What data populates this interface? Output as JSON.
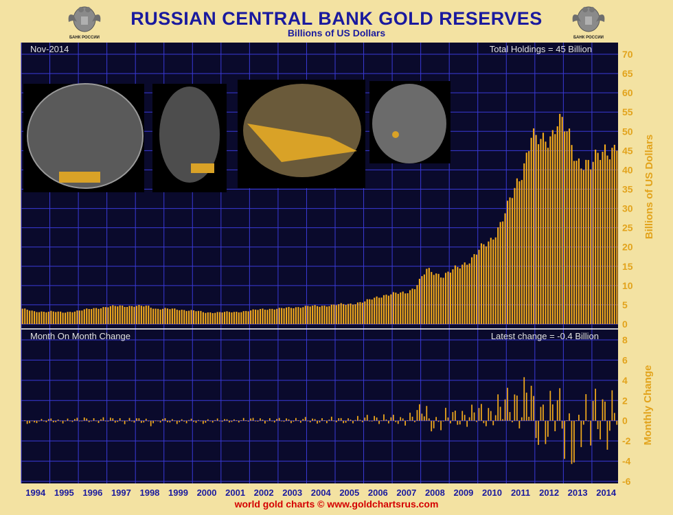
{
  "header": {
    "title": "RUSSIAN CENTRAL BANK GOLD RESERVES",
    "subtitle": "Billions of US Dollars",
    "emblem_text": "БАНК РОССИИ"
  },
  "footer": {
    "credit": "world gold charts © www.goldchartsrus.com"
  },
  "colors": {
    "background": "#f3e2a2",
    "plot_bg": "#0a0a2c",
    "grid": "#3a3ad8",
    "bar": "#f2aa1c",
    "title": "#1a1a9e",
    "accent_text": "#e2a31c",
    "footer": "#d40000"
  },
  "chart_data": [
    {
      "type": "bar",
      "title": "RUSSIAN CENTRAL BANK GOLD RESERVES",
      "subtitle": "Billions of US Dollars",
      "ylabel": "Billions of US Dollars",
      "date_label": "Nov-2014",
      "annotation": "Total Holdings = 45 Billion",
      "ylim": [
        0,
        70
      ],
      "yticks": [
        0,
        5,
        10,
        15,
        20,
        25,
        30,
        35,
        40,
        45,
        50,
        55,
        60,
        65,
        70
      ],
      "grid": true,
      "x_start": "1994-01",
      "x_end": "2014-11",
      "anchors": [
        [
          "1994-01",
          4.0
        ],
        [
          "1994-06",
          3.2
        ],
        [
          "1995-01",
          3.3
        ],
        [
          "1995-06",
          3.0
        ],
        [
          "1996-01",
          3.5
        ],
        [
          "1996-06",
          4.0
        ],
        [
          "1997-01",
          4.5
        ],
        [
          "1997-06",
          4.7
        ],
        [
          "1998-01",
          4.7
        ],
        [
          "1998-06",
          4.6
        ],
        [
          "1998-09",
          4.0
        ],
        [
          "1999-01",
          4.0
        ],
        [
          "1999-06",
          3.8
        ],
        [
          "2000-01",
          3.5
        ],
        [
          "2000-06",
          3.0
        ],
        [
          "2001-01",
          3.1
        ],
        [
          "2001-06",
          3.1
        ],
        [
          "2002-01",
          3.5
        ],
        [
          "2002-06",
          3.9
        ],
        [
          "2003-01",
          4.0
        ],
        [
          "2003-06",
          4.3
        ],
        [
          "2004-01",
          4.6
        ],
        [
          "2004-06",
          4.7
        ],
        [
          "2005-01",
          5.0
        ],
        [
          "2005-06",
          5.2
        ],
        [
          "2006-01",
          5.8
        ],
        [
          "2006-06",
          7.0
        ],
        [
          "2006-09",
          7.5
        ],
        [
          "2007-01",
          7.8
        ],
        [
          "2007-06",
          8.2
        ],
        [
          "2007-10",
          9.5
        ],
        [
          "2008-01",
          12.0
        ],
        [
          "2008-03",
          14.0
        ],
        [
          "2008-06",
          13.5
        ],
        [
          "2008-10",
          12.5
        ],
        [
          "2009-01",
          13.5
        ],
        [
          "2009-06",
          15.5
        ],
        [
          "2009-10",
          17.0
        ],
        [
          "2010-01",
          19.0
        ],
        [
          "2010-06",
          22.0
        ],
        [
          "2010-10",
          26.0
        ],
        [
          "2011-01",
          30.0
        ],
        [
          "2011-04",
          35.0
        ],
        [
          "2011-07",
          40.0
        ],
        [
          "2011-09",
          44.0
        ],
        [
          "2011-11",
          49.0
        ],
        [
          "2012-01",
          47.0
        ],
        [
          "2012-04",
          47.5
        ],
        [
          "2012-08",
          50.0
        ],
        [
          "2012-10",
          53.0
        ],
        [
          "2012-12",
          51.5
        ],
        [
          "2013-03",
          48.0
        ],
        [
          "2013-06",
          43.0
        ],
        [
          "2013-09",
          42.0
        ],
        [
          "2013-12",
          40.5
        ],
        [
          "2014-03",
          43.5
        ],
        [
          "2014-06",
          46.0
        ],
        [
          "2014-08",
          45.5
        ],
        [
          "2014-11",
          45.0
        ]
      ]
    },
    {
      "type": "bar",
      "ylabel": "Monthly Change",
      "title": "Month On Month Change",
      "annotation": "Latest change = -0.4 Billion",
      "ylim": [
        -6,
        8
      ],
      "yticks": [
        -6,
        -4,
        -2,
        0,
        2,
        4,
        6,
        8
      ],
      "grid": true,
      "latest_change": -0.4
    }
  ],
  "x_axis": {
    "year_labels": [
      "1994",
      "1995",
      "1996",
      "1997",
      "1998",
      "1999",
      "2000",
      "2001",
      "2002",
      "2003",
      "2004",
      "2005",
      "2006",
      "2007",
      "2008",
      "2009",
      "2010",
      "2011",
      "2012",
      "2013",
      "2014"
    ]
  }
}
